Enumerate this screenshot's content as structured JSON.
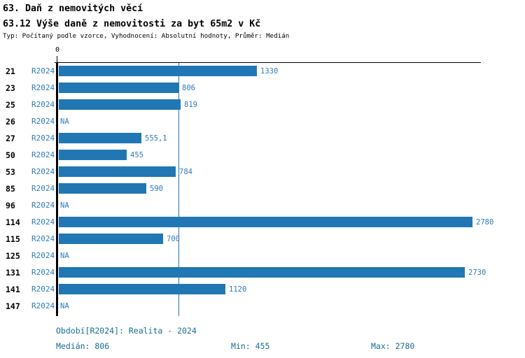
{
  "header": {
    "title_line1": "63. Daň z nemovitých věcí",
    "title_line2": "63.12 Výše daně z nemovitosti za byt 65m2 v Kč",
    "meta": "Typ: Počítaný podle vzorce, Vyhodnocení: Absolutní hodnoty, Průměr: Medián"
  },
  "chart_data": {
    "type": "bar",
    "orientation": "horizontal",
    "title": "63.12 Výše daně z nemovitosti za byt 65m2 v Kč",
    "xlabel": "",
    "ylabel": "",
    "x_axis": {
      "zero_label": "0",
      "xmin": 0,
      "xmax": 2840,
      "grid": false
    },
    "period": "R2024",
    "median_line_value": 806,
    "categories": [
      "21",
      "23",
      "25",
      "26",
      "27",
      "50",
      "53",
      "85",
      "96",
      "114",
      "115",
      "125",
      "131",
      "141",
      "147"
    ],
    "values": [
      1330,
      806,
      819,
      null,
      555.1,
      455,
      784,
      590,
      null,
      2780,
      700,
      null,
      2730,
      1120,
      null
    ],
    "value_labels": [
      "1330",
      "806",
      "819",
      "NA",
      "555,1",
      "455",
      "784",
      "590",
      "NA",
      "2780",
      "700",
      "NA",
      "2730",
      "1120",
      "NA"
    ],
    "colors": {
      "bar": "#2077b4",
      "value_label": "#2e7ab8",
      "period_label": "#2e7ab8",
      "median_line": "#2077b4",
      "axis": "#000000"
    }
  },
  "footer": {
    "period_line": "Období[R2024]: Realita - 2024",
    "median": "Medián: 806",
    "min": "Min: 455",
    "max": "Max: 2780",
    "color": "#156e8e"
  }
}
